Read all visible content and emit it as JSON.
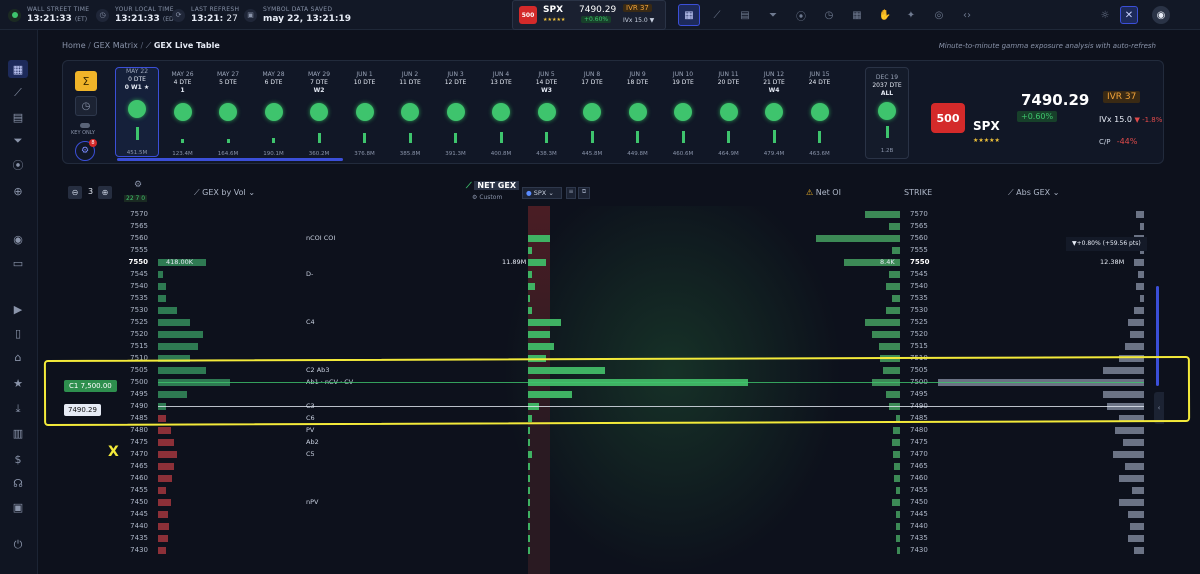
{
  "topbar": {
    "clocks": [
      {
        "label": "WALL STREET TIME",
        "value": "13:21:33",
        "suffix": "(ET)"
      },
      {
        "label": "YOUR LOCAL TIME",
        "value": "13:21:33",
        "suffix": "(EDT)"
      },
      {
        "label": "LAST REFRESH",
        "value": "13:21:",
        "suffix": "27"
      },
      {
        "label": "SYMBOL DATA SAVED",
        "value": "may 22, 13:21:19",
        "suffix": ""
      }
    ],
    "ticker": {
      "badge": "500",
      "symbol": "SPX",
      "stars": "★★★★★",
      "price": "7490.29",
      "change": "+0.60%",
      "ivr": "IVR 37",
      "ivx": "IVx 15.0 ▼"
    }
  },
  "breadcrumb": {
    "home": "Home",
    "matrix": "GEX Matrix",
    "current": "GEX Live Table"
  },
  "subtitle": "Minute-to-minute gamma exposure analysis with auto-refresh",
  "controls": {
    "key_only": "KEY ONLY",
    "badge": "8"
  },
  "expirations": [
    {
      "date": "MAY 22",
      "dte": "0 DTE",
      "tag": "0  W1 ★",
      "value": "451.5M",
      "bar": 0.9,
      "selected": true
    },
    {
      "date": "MAY 26",
      "dte": "4 DTE",
      "tag": "1",
      "value": "123.4M",
      "bar": 0.25
    },
    {
      "date": "MAY 27",
      "dte": "5 DTE",
      "tag": "",
      "value": "164.6M",
      "bar": 0.3
    },
    {
      "date": "MAY 28",
      "dte": "6 DTE",
      "tag": "",
      "value": "190.1M",
      "bar": 0.35
    },
    {
      "date": "MAY 29",
      "dte": "7 DTE",
      "tag": "W2",
      "value": "360.2M",
      "bar": 0.7
    },
    {
      "date": "JUN 1",
      "dte": "10 DTE",
      "tag": "",
      "value": "376.8M",
      "bar": 0.7
    },
    {
      "date": "JUN 2",
      "dte": "11 DTE",
      "tag": "",
      "value": "385.8M",
      "bar": 0.72
    },
    {
      "date": "JUN 3",
      "dte": "12 DTE",
      "tag": "",
      "value": "391.3M",
      "bar": 0.74
    },
    {
      "date": "JUN 4",
      "dte": "13 DTE",
      "tag": "",
      "value": "400.8M",
      "bar": 0.76
    },
    {
      "date": "JUN 5",
      "dte": "14 DTE",
      "tag": "W3",
      "value": "438.3M",
      "bar": 0.82
    },
    {
      "date": "JUN 8",
      "dte": "17 DTE",
      "tag": "",
      "value": "445.8M",
      "bar": 0.84
    },
    {
      "date": "JUN 9",
      "dte": "18 DTE",
      "tag": "",
      "value": "449.8M",
      "bar": 0.85
    },
    {
      "date": "JUN 10",
      "dte": "19 DTE",
      "tag": "",
      "value": "460.6M",
      "bar": 0.87
    },
    {
      "date": "JUN 11",
      "dte": "20 DTE",
      "tag": "",
      "value": "464.9M",
      "bar": 0.88
    },
    {
      "date": "JUN 12",
      "dte": "21 DTE",
      "tag": "W4",
      "value": "479.4M",
      "bar": 0.9
    },
    {
      "date": "JUN 15",
      "dte": "24 DTE",
      "tag": "",
      "value": "463.6M",
      "bar": 0.88
    }
  ],
  "all_expiry": {
    "date": "DEC 19",
    "dte": "2037 DTE",
    "tag": "ALL",
    "value": "1.2B"
  },
  "summary": {
    "badge": "500",
    "symbol": "SPX",
    "stars": "★★★★★",
    "price": "7490.29",
    "change": "+0.60%",
    "ivr": "IVR 37",
    "ivx": "IVx 15.0",
    "ivx_change": "▼ -1.8%",
    "cp_label": "C/P",
    "cp_value": "-44%"
  },
  "table_header": {
    "zoom": "3",
    "counts": "22  7  0",
    "gex_by_vol": "GEX by Vol",
    "net_gex": "NET GEX",
    "custom": "Custom",
    "spx_tab": "SPX",
    "net_oi": "Net OI",
    "strike": "STRIKE",
    "abs_gex": "Abs GEX"
  },
  "tooltip": "▼+0.80% (+59.56 pts)",
  "rows": [
    {
      "strike": "7570",
      "l": 0,
      "net": 0.0,
      "oi": 0.25,
      "abs": 0.04
    },
    {
      "strike": "7565",
      "l": 0,
      "net": 0.0,
      "oi": 0.08,
      "abs": 0.02
    },
    {
      "strike": "7560",
      "l": 0,
      "net": 0.1,
      "oi": 0.6,
      "abs": 0.05,
      "label": "nCOI   COI"
    },
    {
      "strike": "7555",
      "l": 0,
      "net": 0.02,
      "oi": 0.06,
      "abs": 0.02
    },
    {
      "strike": "7550",
      "l": 0.3,
      "net": 0.08,
      "oi": 0.4,
      "abs": 0.05,
      "bold": true,
      "lval": "418.00K",
      "nval": "11.89M",
      "oival": "8.4K",
      "absval": "12.38M"
    },
    {
      "strike": "7545",
      "l": 0.03,
      "net": 0.02,
      "oi": 0.08,
      "abs": 0.03,
      "label": "D-"
    },
    {
      "strike": "7540",
      "l": 0.05,
      "net": 0.03,
      "oi": 0.1,
      "abs": 0.04
    },
    {
      "strike": "7535",
      "l": 0.05,
      "net": 0.01,
      "oi": 0.06,
      "abs": 0.02
    },
    {
      "strike": "7530",
      "l": 0.12,
      "net": 0.02,
      "oi": 0.1,
      "abs": 0.05
    },
    {
      "strike": "7525",
      "l": 0.2,
      "net": 0.15,
      "oi": 0.25,
      "abs": 0.08,
      "label": "C4"
    },
    {
      "strike": "7520",
      "l": 0.28,
      "net": 0.1,
      "oi": 0.2,
      "abs": 0.07
    },
    {
      "strike": "7515",
      "l": 0.25,
      "net": 0.12,
      "oi": 0.15,
      "abs": 0.09
    },
    {
      "strike": "7510",
      "l": 0.2,
      "net": 0.08,
      "oi": 0.14,
      "abs": 0.12
    },
    {
      "strike": "7505",
      "l": 0.3,
      "net": 0.35,
      "oi": 0.12,
      "abs": 0.2,
      "label": "C2   Ab3"
    },
    {
      "strike": "7500",
      "l": 0.45,
      "net": 1.0,
      "oi": 0.2,
      "abs": 1.0,
      "label": "Ab1 · nCV · CV"
    },
    {
      "strike": "7495",
      "l": 0.18,
      "net": 0.2,
      "oi": 0.1,
      "abs": 0.2
    },
    {
      "strike": "7490",
      "l": 0.05,
      "net": 0.05,
      "oi": 0.08,
      "abs": 0.18,
      "label": "C3"
    },
    {
      "strike": "7485",
      "l": -0.05,
      "net": 0.02,
      "oi": 0.03,
      "abs": 0.12,
      "label": "C6"
    },
    {
      "strike": "7480",
      "l": -0.08,
      "net": 0.01,
      "oi": 0.05,
      "abs": 0.14,
      "label": "PV"
    },
    {
      "strike": "7475",
      "l": -0.1,
      "net": 0.01,
      "oi": 0.06,
      "abs": 0.1,
      "label": "Ab2"
    },
    {
      "strike": "7470",
      "l": -0.12,
      "net": 0.02,
      "oi": 0.05,
      "abs": 0.15,
      "label": "C5"
    },
    {
      "strike": "7465",
      "l": -0.1,
      "net": 0.01,
      "oi": 0.04,
      "abs": 0.09
    },
    {
      "strike": "7460",
      "l": -0.09,
      "net": 0.01,
      "oi": 0.04,
      "abs": 0.12
    },
    {
      "strike": "7455",
      "l": -0.05,
      "net": 0.01,
      "oi": 0.03,
      "abs": 0.06
    },
    {
      "strike": "7450",
      "l": -0.08,
      "net": 0.01,
      "oi": 0.06,
      "abs": 0.12,
      "label": "nPV"
    },
    {
      "strike": "7445",
      "l": -0.06,
      "net": 0.01,
      "oi": 0.03,
      "abs": 0.08
    },
    {
      "strike": "7440",
      "l": -0.07,
      "net": 0.01,
      "oi": 0.03,
      "abs": 0.07
    },
    {
      "strike": "7435",
      "l": -0.06,
      "net": 0.01,
      "oi": 0.03,
      "abs": 0.08
    },
    {
      "strike": "7430",
      "l": -0.05,
      "net": 0.01,
      "oi": 0.02,
      "abs": 0.05
    }
  ],
  "markers": {
    "call_wall": "C1 7,500.00",
    "spot": "7490.29"
  },
  "annotation_mark": "X",
  "colors": {
    "green": "#3ec46d",
    "red": "#d34a4a",
    "yellow": "#f3ea3a",
    "accent": "#3b4fd8"
  }
}
